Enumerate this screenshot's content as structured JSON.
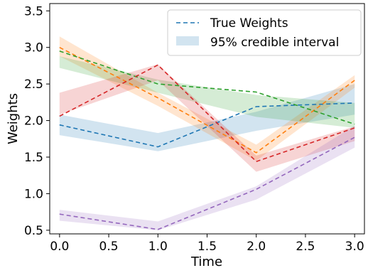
{
  "chart_data": {
    "type": "line",
    "xlabel": "Time",
    "ylabel": "Weights",
    "xlim": [
      -0.1,
      3.1
    ],
    "ylim": [
      0.45,
      3.6
    ],
    "xticks": [
      "0.0",
      "0.5",
      "1.0",
      "1.5",
      "2.0",
      "2.5",
      "3.0"
    ],
    "yticks": [
      "0.5",
      "1.0",
      "1.5",
      "2.0",
      "2.5",
      "3.0",
      "3.5"
    ],
    "grid": false,
    "legend": {
      "placement": "top-right",
      "entries": [
        "True Weights",
        "95% credible interval"
      ]
    },
    "x": [
      0,
      1,
      2,
      3
    ],
    "series": [
      {
        "color": "#1f77b4",
        "values": [
          1.94,
          1.64,
          2.19,
          2.24
        ],
        "lower": [
          1.8,
          1.58,
          1.86,
          2.08
        ],
        "upper": [
          2.08,
          1.83,
          2.12,
          2.5
        ]
      },
      {
        "color": "#ff7f0e",
        "values": [
          3.0,
          2.31,
          1.56,
          2.55
        ],
        "lower": [
          2.88,
          2.2,
          1.45,
          2.45
        ],
        "upper": [
          3.15,
          2.38,
          1.67,
          2.62
        ]
      },
      {
        "color": "#2ca02c",
        "values": [
          2.95,
          2.5,
          2.39,
          1.95
        ],
        "lower": [
          2.72,
          2.38,
          2.05,
          1.9
        ],
        "upper": [
          2.88,
          2.56,
          2.35,
          2.24
        ]
      },
      {
        "color": "#d62728",
        "values": [
          2.06,
          2.76,
          1.44,
          1.9
        ],
        "lower": [
          2.08,
          2.55,
          1.3,
          1.72
        ],
        "upper": [
          2.38,
          2.77,
          1.52,
          1.92
        ]
      },
      {
        "color": "#9467bd",
        "values": [
          0.72,
          0.51,
          1.06,
          1.77
        ],
        "lower": [
          0.63,
          0.5,
          0.92,
          1.63
        ],
        "upper": [
          0.78,
          0.62,
          1.1,
          1.93
        ]
      }
    ]
  }
}
